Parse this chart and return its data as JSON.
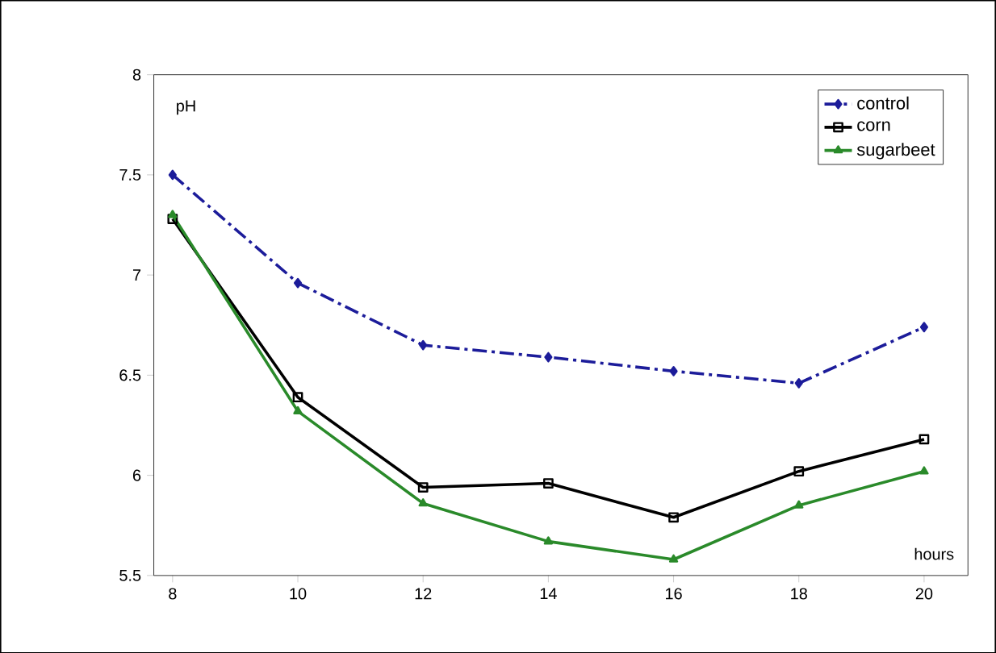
{
  "chart_data": {
    "type": "line",
    "xlabel": "hours",
    "ylabel": "pH",
    "x": [
      8,
      10,
      12,
      14,
      16,
      18,
      20
    ],
    "series": [
      {
        "name": "control",
        "color": "#1c1c9a",
        "marker": "diamond",
        "line_style": "dashed",
        "values": [
          7.5,
          6.96,
          6.65,
          6.59,
          6.52,
          6.46,
          6.74
        ]
      },
      {
        "name": "corn",
        "color": "#000000",
        "marker": "square",
        "line_style": "solid",
        "values": [
          7.28,
          6.39,
          5.94,
          5.96,
          5.79,
          6.02,
          6.18
        ]
      },
      {
        "name": "sugarbeet",
        "color": "#2a8a2a",
        "marker": "triangle",
        "line_style": "solid",
        "values": [
          7.3,
          6.32,
          5.86,
          5.67,
          5.58,
          5.85,
          6.02
        ]
      }
    ],
    "xlim": [
      7.7,
      20.7
    ],
    "ylim": [
      5.5,
      8
    ],
    "xticks": [
      8,
      10,
      12,
      14,
      16,
      18,
      20
    ],
    "yticks": [
      5.5,
      6,
      6.5,
      7,
      7.5,
      8
    ],
    "grid": false,
    "legend": "top right"
  }
}
